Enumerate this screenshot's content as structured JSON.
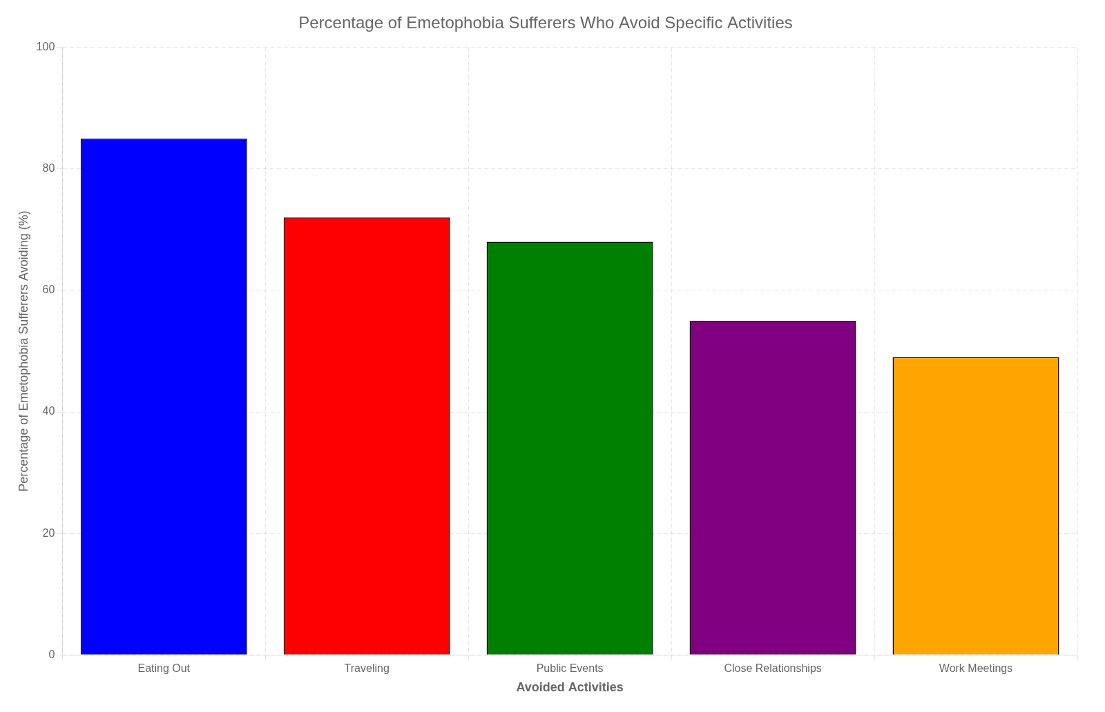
{
  "chart_data": {
    "type": "bar",
    "title": "Percentage of Emetophobia Sufferers Who Avoid Specific Activities",
    "xlabel": "Avoided Activities",
    "ylabel": "Percentage of Emetophobia Sufferers Avoiding (%)",
    "categories": [
      "Eating Out",
      "Traveling",
      "Public Events",
      "Close Relationships",
      "Work Meetings"
    ],
    "values": [
      85,
      72,
      68,
      55,
      49
    ],
    "colors": [
      "#0000ff",
      "#ff0000",
      "#008000",
      "#800080",
      "#ffa500"
    ],
    "ylim": [
      0,
      100
    ],
    "yticks": [
      0,
      20,
      40,
      60,
      80,
      100
    ],
    "grid": true
  }
}
